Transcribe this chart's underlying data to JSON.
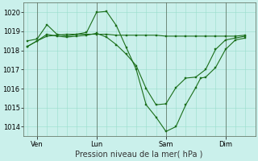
{
  "background_color": "#caf0eb",
  "grid_color": "#99ddcc",
  "line_color": "#1a6e1a",
  "marker_color": "#1a6e1a",
  "xlabel": "Pression niveau de la mer( hPa )",
  "ylim": [
    1013.5,
    1020.5
  ],
  "yticks": [
    1014,
    1015,
    1016,
    1017,
    1018,
    1019,
    1020
  ],
  "x_tick_labels": [
    "Ven",
    "Lun",
    "Sam",
    "Dim"
  ],
  "x_tick_positions": [
    0.5,
    3.5,
    7.0,
    10.0
  ],
  "xlim": [
    -0.2,
    11.5
  ],
  "series1": [
    [
      0.0,
      1018.5
    ],
    [
      0.5,
      1018.6
    ],
    [
      1.0,
      1019.35
    ],
    [
      1.5,
      1018.85
    ],
    [
      2.0,
      1018.75
    ],
    [
      2.5,
      1018.85
    ],
    [
      3.0,
      1018.95
    ],
    [
      3.5,
      1020.0
    ],
    [
      4.0,
      1020.05
    ],
    [
      4.5,
      1019.3
    ],
    [
      5.0,
      1018.15
    ],
    [
      5.5,
      1017.0
    ],
    [
      6.0,
      1015.15
    ],
    [
      6.5,
      1014.5
    ],
    [
      7.0,
      1013.75
    ],
    [
      7.5,
      1014.0
    ],
    [
      8.0,
      1015.15
    ],
    [
      8.5,
      1016.05
    ],
    [
      8.75,
      1016.55
    ],
    [
      9.0,
      1016.6
    ],
    [
      9.5,
      1017.1
    ],
    [
      10.0,
      1018.05
    ],
    [
      10.5,
      1018.55
    ],
    [
      11.0,
      1018.65
    ]
  ],
  "series2": [
    [
      0.0,
      1018.2
    ],
    [
      0.5,
      1018.5
    ],
    [
      1.0,
      1018.75
    ],
    [
      1.5,
      1018.8
    ],
    [
      2.0,
      1018.85
    ],
    [
      2.5,
      1018.85
    ],
    [
      3.0,
      1018.85
    ],
    [
      3.5,
      1018.85
    ],
    [
      4.0,
      1018.85
    ],
    [
      4.5,
      1018.8
    ],
    [
      5.0,
      1018.8
    ],
    [
      5.5,
      1018.8
    ],
    [
      6.0,
      1018.8
    ],
    [
      6.5,
      1018.8
    ],
    [
      7.0,
      1018.75
    ],
    [
      7.5,
      1018.75
    ],
    [
      8.0,
      1018.75
    ],
    [
      8.5,
      1018.75
    ],
    [
      9.0,
      1018.75
    ],
    [
      9.5,
      1018.75
    ],
    [
      10.0,
      1018.75
    ],
    [
      10.5,
      1018.75
    ],
    [
      11.0,
      1018.8
    ]
  ],
  "series3": [
    [
      0.0,
      1018.2
    ],
    [
      0.5,
      1018.5
    ],
    [
      1.0,
      1018.85
    ],
    [
      1.5,
      1018.75
    ],
    [
      2.0,
      1018.7
    ],
    [
      2.5,
      1018.75
    ],
    [
      3.0,
      1018.8
    ],
    [
      3.5,
      1018.9
    ],
    [
      4.0,
      1018.7
    ],
    [
      4.5,
      1018.3
    ],
    [
      5.0,
      1017.8
    ],
    [
      5.5,
      1017.2
    ],
    [
      6.0,
      1016.0
    ],
    [
      6.5,
      1015.15
    ],
    [
      7.0,
      1015.2
    ],
    [
      7.5,
      1016.05
    ],
    [
      8.0,
      1016.55
    ],
    [
      8.5,
      1016.6
    ],
    [
      9.0,
      1017.0
    ],
    [
      9.5,
      1018.05
    ],
    [
      10.0,
      1018.55
    ],
    [
      10.5,
      1018.65
    ],
    [
      11.0,
      1018.75
    ]
  ]
}
